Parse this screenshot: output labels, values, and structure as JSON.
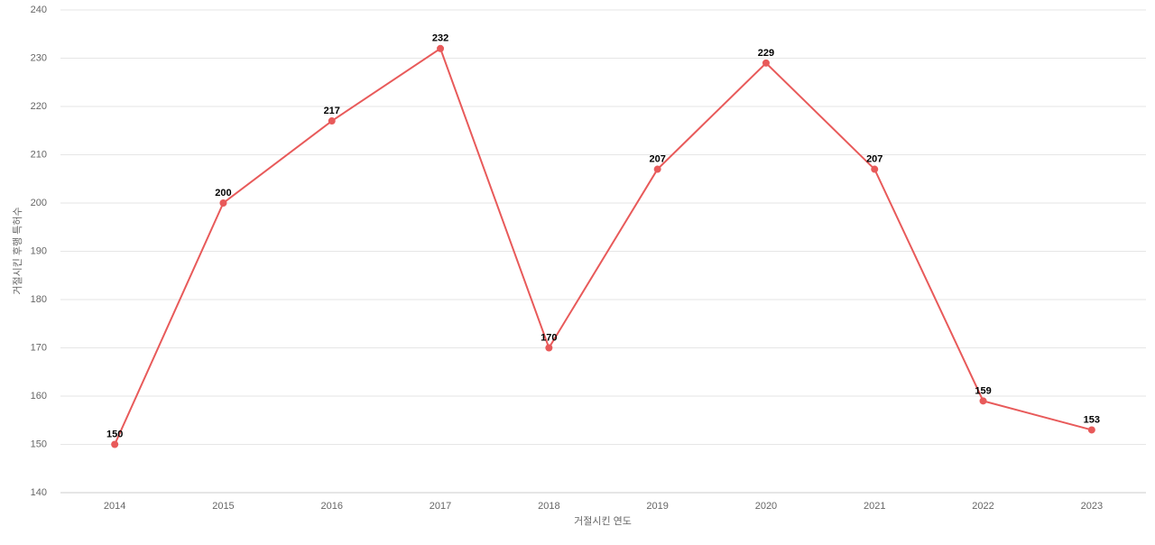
{
  "chart_data": {
    "type": "line",
    "x_label": "거절시킨 연도",
    "y_label": "거절시킨 후행 특허수",
    "categories": [
      "2014",
      "2015",
      "2016",
      "2017",
      "2018",
      "2019",
      "2020",
      "2021",
      "2022",
      "2023"
    ],
    "values": [
      150,
      200,
      217,
      232,
      170,
      207,
      229,
      207,
      159,
      153
    ],
    "color": "#e85a5a",
    "ylim": [
      140,
      240
    ],
    "yticks": [
      140,
      150,
      160,
      170,
      180,
      190,
      200,
      210,
      220,
      230,
      240
    ],
    "grid": true
  }
}
